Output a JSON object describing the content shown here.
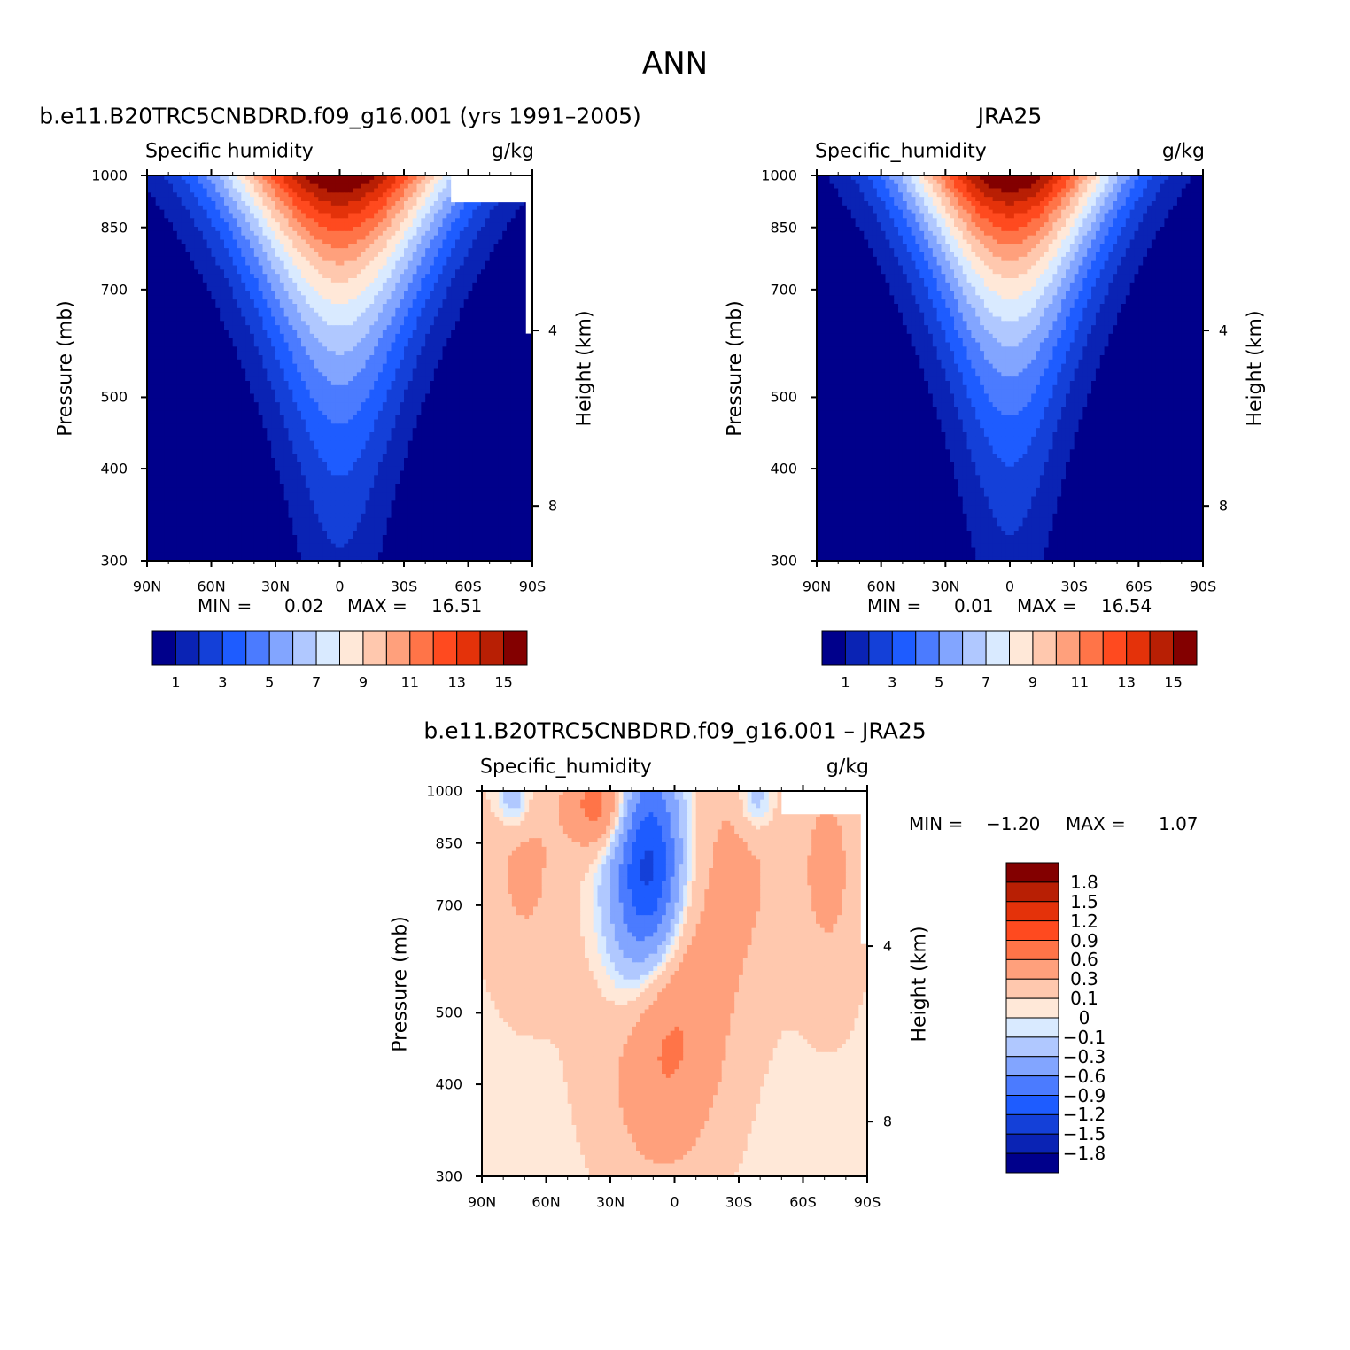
{
  "figure_title": "ANN",
  "chart_data": [
    {
      "type": "heatmap",
      "title": "b.e11.B20TRC5CNBDRD.f09_g16.001 (yrs 1991–2005)",
      "left_label": "Specific humidity",
      "units": "g/kg",
      "ylabel": "Pressure (mb)",
      "ylabel2": "Height (km)",
      "x_ticks": [
        "90N",
        "60N",
        "30N",
        "0",
        "30S",
        "60S",
        "90S"
      ],
      "y_ticks": [
        "300",
        "400",
        "500",
        "700",
        "850",
        "1000"
      ],
      "y_ticks_values": [
        300,
        400,
        500,
        700,
        850,
        1000
      ],
      "y2_ticks": [
        "8",
        "4"
      ],
      "xlim": [
        90,
        -90
      ],
      "ylim": [
        1000,
        300
      ],
      "y_scale": "log",
      "min_label": "MIN =",
      "min_value": "0.02",
      "max_label": "MAX =",
      "max_value": "16.51",
      "colorbar": {
        "orientation": "horizontal",
        "levels": [
          "1",
          "3",
          "5",
          "7",
          "9",
          "11",
          "13",
          "15"
        ],
        "colors": [
          "#00008b",
          "#0a23b4",
          "#1440d8",
          "#1e5cff",
          "#4b7bff",
          "#82a5ff",
          "#b0c8ff",
          "#d9eaff",
          "#ffe8d8",
          "#ffc8ae",
          "#ffa07c",
          "#ff7448",
          "#ff4a1f",
          "#e4320a",
          "#b81f04",
          "#830000"
        ]
      },
      "peak": 16.51,
      "surface_width": 40,
      "top_width": 16,
      "height_decay": 0.55,
      "missing": [
        {
          "lat_from": -52,
          "lat_to": -90,
          "p_from": 1000,
          "p_to": 920
        },
        {
          "lat_from": -87,
          "lat_to": -90,
          "p_from": 1000,
          "p_to": 610
        }
      ]
    },
    {
      "type": "heatmap",
      "title": "JRA25",
      "left_label": "Specific_humidity",
      "units": "g/kg",
      "ylabel": "Pressure (mb)",
      "ylabel2": "Height (km)",
      "x_ticks": [
        "90N",
        "60N",
        "30N",
        "0",
        "30S",
        "60S",
        "90S"
      ],
      "y_ticks": [
        "300",
        "400",
        "500",
        "700",
        "850",
        "1000"
      ],
      "y_ticks_values": [
        300,
        400,
        500,
        700,
        850,
        1000
      ],
      "y2_ticks": [
        "8",
        "4"
      ],
      "xlim": [
        90,
        -90
      ],
      "ylim": [
        1000,
        300
      ],
      "y_scale": "log",
      "min_label": "MIN =",
      "min_value": "0.01",
      "max_label": "MAX =",
      "max_value": "16.54",
      "colorbar": {
        "orientation": "horizontal",
        "levels": [
          "1",
          "3",
          "5",
          "7",
          "9",
          "11",
          "13",
          "15"
        ],
        "colors": [
          "#00008b",
          "#0a23b4",
          "#1440d8",
          "#1e5cff",
          "#4b7bff",
          "#82a5ff",
          "#b0c8ff",
          "#d9eaff",
          "#ffe8d8",
          "#ffc8ae",
          "#ffa07c",
          "#ff7448",
          "#ff4a1f",
          "#e4320a",
          "#b81f04",
          "#830000"
        ]
      },
      "peak": 16.54,
      "surface_width": 36,
      "top_width": 15,
      "height_decay": 0.53,
      "missing": []
    },
    {
      "type": "heatmap",
      "title": "b.e11.B20TRC5CNBDRD.f09_g16.001 – JRA25",
      "left_label": "Specific_humidity",
      "units": "g/kg",
      "ylabel": "Pressure (mb)",
      "ylabel2": "Height (km)",
      "x_ticks": [
        "90N",
        "60N",
        "30N",
        "0",
        "30S",
        "60S",
        "90S"
      ],
      "y_ticks": [
        "300",
        "400",
        "500",
        "700",
        "850",
        "1000"
      ],
      "y_ticks_values": [
        300,
        400,
        500,
        700,
        850,
        1000
      ],
      "y2_ticks": [
        "8",
        "4"
      ],
      "xlim": [
        90,
        -90
      ],
      "ylim": [
        1000,
        300
      ],
      "y_scale": "log",
      "min_label": "MIN =",
      "min_value": "−1.20",
      "max_label": "MAX =",
      "max_value": "1.07",
      "colorbar": {
        "orientation": "vertical",
        "levels": [
          "1.8",
          "1.5",
          "1.2",
          "0.9",
          "0.6",
          "0.3",
          "0.1",
          "0",
          "−0.1",
          "−0.3",
          "−0.6",
          "−0.9",
          "−1.2",
          "−1.5",
          "−1.8"
        ],
        "colors": [
          "#830000",
          "#b81f04",
          "#e4320a",
          "#ff4a1f",
          "#ff7448",
          "#ffa07c",
          "#ffc8ae",
          "#ffe8d8",
          "#d9eaff",
          "#b0c8ff",
          "#82a5ff",
          "#4b7bff",
          "#1e5cff",
          "#1440d8",
          "#0a23b4",
          "#00008b"
        ]
      },
      "anomalies": [
        {
          "lat": 6,
          "p": 470,
          "amp": 0.65,
          "slat": 20,
          "sp": 0.3
        },
        {
          "lat": 10,
          "p": 780,
          "amp": -1.2,
          "slat": 10,
          "sp": 0.22
        },
        {
          "lat": 22,
          "p": 700,
          "amp": -0.5,
          "slat": 10,
          "sp": 0.3
        },
        {
          "lat": 35,
          "p": 960,
          "amp": 0.75,
          "slat": 10,
          "sp": 0.1
        },
        {
          "lat": 70,
          "p": 800,
          "amp": 0.3,
          "slat": 14,
          "sp": 0.28
        },
        {
          "lat": 75,
          "p": 980,
          "amp": -0.45,
          "slat": 6,
          "sp": 0.07
        },
        {
          "lat": -30,
          "p": 800,
          "amp": 0.3,
          "slat": 15,
          "sp": 0.3
        },
        {
          "lat": -38,
          "p": 980,
          "amp": -0.4,
          "slat": 6,
          "sp": 0.08
        },
        {
          "lat": -72,
          "p": 780,
          "amp": 0.3,
          "slat": 12,
          "sp": 0.3
        }
      ],
      "missing": [
        {
          "lat_from": -50,
          "lat_to": -90,
          "p_from": 1000,
          "p_to": 930
        },
        {
          "lat_from": -87,
          "lat_to": -90,
          "p_from": 1000,
          "p_to": 620
        }
      ]
    }
  ]
}
